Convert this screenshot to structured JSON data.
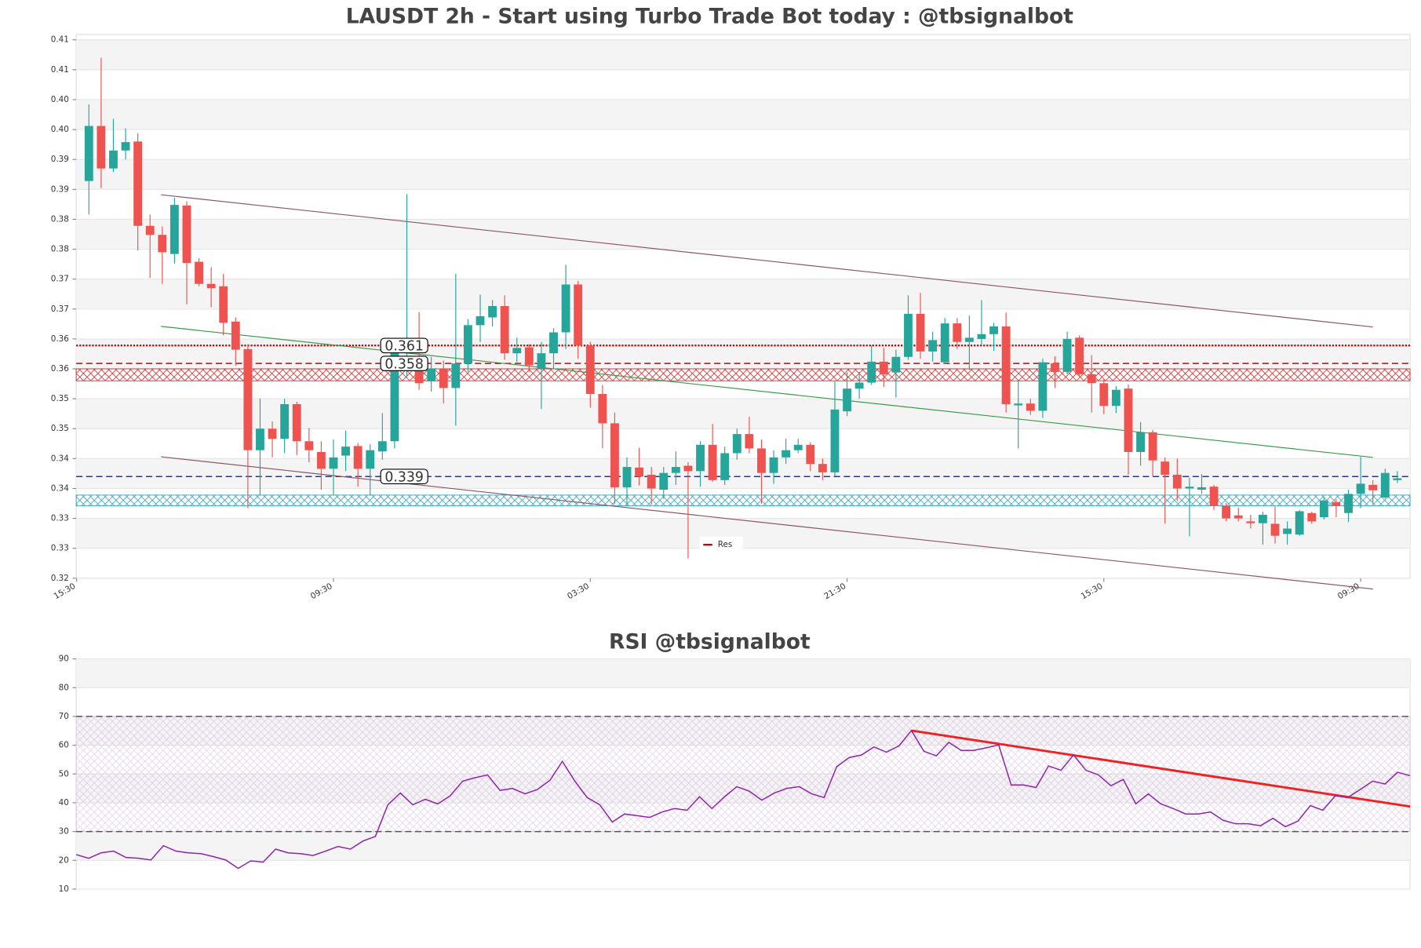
{
  "chart_data": [
    {
      "type": "candlestick",
      "title": "LAUSDT 2h - Start using Turbo Trade Bot today : @tbsignalbot",
      "up_color": "#26a69a",
      "down_color": "#ef5350",
      "open": [
        0.3884,
        0.3976,
        0.3905,
        0.3935,
        0.395,
        0.3809,
        0.3794,
        0.3762,
        0.3843,
        0.3749,
        0.3712,
        0.3708,
        0.3649,
        0.3603,
        0.3434,
        0.347,
        0.3453,
        0.3511,
        0.3449,
        0.3431,
        0.3403,
        0.3425,
        0.3441,
        0.3403,
        0.3432,
        0.3449,
        0.3567,
        0.3587,
        0.3549,
        0.357,
        0.3538,
        0.3579,
        0.3643,
        0.3656,
        0.3675,
        0.3596,
        0.3606,
        0.357,
        0.3596,
        0.3631,
        0.3711,
        0.3609,
        0.3528,
        0.3479,
        0.3372,
        0.3405,
        0.3393,
        0.3368,
        0.3396,
        0.3408,
        0.3399,
        0.3443,
        0.3384,
        0.3429,
        0.3461,
        0.3437,
        0.3396,
        0.3422,
        0.3434,
        0.3443,
        0.3411,
        0.3397,
        0.3499,
        0.3537,
        0.3547,
        0.3582,
        0.3564,
        0.359,
        0.3662,
        0.3599,
        0.3581,
        0.3646,
        0.3615,
        0.362,
        0.3628,
        0.3641,
        0.3509,
        0.3512,
        0.35,
        0.3579,
        0.3565,
        0.3622,
        0.3561,
        0.3546,
        0.3508,
        0.3537,
        0.3431,
        0.3464,
        0.3415,
        0.3393,
        0.337,
        0.3368,
        0.3373,
        0.3341,
        0.3325,
        0.3315,
        0.3312,
        0.3311,
        0.3294,
        0.3293,
        0.3329,
        0.3322,
        0.3347,
        0.3329,
        0.3361,
        0.3376,
        0.3355,
        0.3384
      ],
      "high": [
        0.4012,
        0.409,
        0.3988,
        0.3972,
        0.3964,
        0.3828,
        0.3808,
        0.3856,
        0.385,
        0.3755,
        0.374,
        0.3729,
        0.3656,
        0.3611,
        0.352,
        0.3482,
        0.352,
        0.3515,
        0.3471,
        0.3449,
        0.3452,
        0.3467,
        0.3446,
        0.3444,
        0.3496,
        0.3614,
        0.3862,
        0.3665,
        0.359,
        0.3584,
        0.3729,
        0.3653,
        0.3694,
        0.3685,
        0.3693,
        0.3622,
        0.3611,
        0.3615,
        0.3638,
        0.3744,
        0.3717,
        0.3615,
        0.3543,
        0.3497,
        0.3422,
        0.3438,
        0.3406,
        0.3406,
        0.3432,
        0.3414,
        0.3449,
        0.3478,
        0.344,
        0.347,
        0.349,
        0.3452,
        0.3434,
        0.3453,
        0.3453,
        0.3447,
        0.342,
        0.3549,
        0.3564,
        0.3565,
        0.3609,
        0.3605,
        0.3602,
        0.3693,
        0.3697,
        0.3632,
        0.3655,
        0.3655,
        0.3659,
        0.3685,
        0.3647,
        0.3664,
        0.355,
        0.352,
        0.3587,
        0.3591,
        0.3632,
        0.3626,
        0.3593,
        0.3553,
        0.3541,
        0.3544,
        0.3481,
        0.3468,
        0.3422,
        0.342,
        0.3388,
        0.3394,
        0.3376,
        0.3346,
        0.3338,
        0.3326,
        0.3331,
        0.334,
        0.3315,
        0.3334,
        0.3331,
        0.3356,
        0.3352,
        0.3368,
        0.3423,
        0.3384,
        0.3403,
        0.3399
      ],
      "low": [
        0.3828,
        0.3872,
        0.3899,
        0.392,
        0.3768,
        0.3722,
        0.3712,
        0.3746,
        0.3678,
        0.3708,
        0.3673,
        0.3626,
        0.3575,
        0.3337,
        0.3358,
        0.3422,
        0.3429,
        0.3426,
        0.3414,
        0.3368,
        0.3358,
        0.3399,
        0.3373,
        0.3358,
        0.3418,
        0.3437,
        0.3556,
        0.3535,
        0.3532,
        0.3512,
        0.3475,
        0.3565,
        0.3615,
        0.3641,
        0.3585,
        0.3581,
        0.3565,
        0.3503,
        0.357,
        0.3603,
        0.3587,
        0.3505,
        0.3437,
        0.3344,
        0.3341,
        0.3375,
        0.3343,
        0.3353,
        0.3376,
        0.3253,
        0.3373,
        0.3381,
        0.3376,
        0.3418,
        0.3429,
        0.3344,
        0.3378,
        0.3411,
        0.3429,
        0.3399,
        0.3384,
        0.339,
        0.3491,
        0.352,
        0.3543,
        0.354,
        0.3522,
        0.3585,
        0.3587,
        0.3582,
        0.3578,
        0.3603,
        0.3568,
        0.3611,
        0.36,
        0.3497,
        0.3437,
        0.3493,
        0.3488,
        0.3538,
        0.3561,
        0.3556,
        0.3497,
        0.3494,
        0.3496,
        0.3393,
        0.3408,
        0.339,
        0.3311,
        0.3349,
        0.329,
        0.3361,
        0.3334,
        0.3315,
        0.3315,
        0.3303,
        0.3276,
        0.3278,
        0.3276,
        0.3291,
        0.3311,
        0.3318,
        0.3322,
        0.3314,
        0.3337,
        0.3344,
        0.3353,
        0.3379
      ],
      "close": [
        0.3976,
        0.3905,
        0.3935,
        0.3949,
        0.3809,
        0.3794,
        0.3765,
        0.3844,
        0.3747,
        0.3712,
        0.3705,
        0.3647,
        0.3602,
        0.3434,
        0.347,
        0.3453,
        0.3511,
        0.3449,
        0.3434,
        0.3403,
        0.3422,
        0.344,
        0.3403,
        0.3434,
        0.3449,
        0.3603,
        0.3587,
        0.3546,
        0.357,
        0.3538,
        0.3579,
        0.3643,
        0.3658,
        0.3675,
        0.3596,
        0.3605,
        0.3576,
        0.3596,
        0.3631,
        0.3711,
        0.3609,
        0.3528,
        0.3479,
        0.3372,
        0.3406,
        0.339,
        0.337,
        0.3396,
        0.3406,
        0.3399,
        0.3443,
        0.3384,
        0.3429,
        0.3461,
        0.3437,
        0.3396,
        0.3422,
        0.3434,
        0.3443,
        0.3411,
        0.3397,
        0.3502,
        0.3537,
        0.3547,
        0.3582,
        0.3561,
        0.359,
        0.3662,
        0.3599,
        0.3618,
        0.3646,
        0.3615,
        0.3622,
        0.3628,
        0.3641,
        0.3511,
        0.3512,
        0.35,
        0.3581,
        0.3565,
        0.362,
        0.3561,
        0.3546,
        0.3508,
        0.3535,
        0.3431,
        0.3464,
        0.3417,
        0.3393,
        0.337,
        0.3373,
        0.3372,
        0.3341,
        0.332,
        0.332,
        0.3312,
        0.3326,
        0.3291,
        0.3303,
        0.3332,
        0.3315,
        0.335,
        0.3341,
        0.3361,
        0.3378,
        0.3367,
        0.3396,
        0.3387
      ],
      "xlim": [
        -1.04,
        108.04
      ],
      "xticks": [
        {
          "value": -1,
          "label": "15:30"
        },
        {
          "value": 20,
          "label": "09:30"
        },
        {
          "value": 41,
          "label": "03:30"
        },
        {
          "value": 62,
          "label": "21:30"
        },
        {
          "value": 83,
          "label": "15:30"
        },
        {
          "value": 104,
          "label": "09:30"
        }
      ],
      "ylim": [
        0.322,
        0.4129
      ],
      "yticks": [
        {
          "value": 0.322,
          "label": "0.32"
        },
        {
          "value": 0.327,
          "label": "0.33"
        },
        {
          "value": 0.332,
          "label": "0.33"
        },
        {
          "value": 0.337,
          "label": "0.34"
        },
        {
          "value": 0.342,
          "label": "0.34"
        },
        {
          "value": 0.347,
          "label": "0.35"
        },
        {
          "value": 0.352,
          "label": "0.35"
        },
        {
          "value": 0.357,
          "label": "0.36"
        },
        {
          "value": 0.362,
          "label": "0.36"
        },
        {
          "value": 0.367,
          "label": "0.37"
        },
        {
          "value": 0.372,
          "label": "0.37"
        },
        {
          "value": 0.377,
          "label": "0.38"
        },
        {
          "value": 0.382,
          "label": "0.38"
        },
        {
          "value": 0.387,
          "label": "0.39"
        },
        {
          "value": 0.392,
          "label": "0.39"
        },
        {
          "value": 0.397,
          "label": "0.40"
        },
        {
          "value": 0.402,
          "label": "0.40"
        },
        {
          "value": 0.407,
          "label": "0.41"
        },
        {
          "value": 0.412,
          "label": "0.41"
        }
      ],
      "grid": true,
      "zones": [
        {
          "from": 0.355,
          "to": 0.357,
          "color": "#cc2222"
        },
        {
          "from": 0.3341,
          "to": 0.3359,
          "color": "#2a9dbd"
        }
      ],
      "hlines": [
        {
          "value": 0.3609,
          "label": "0.361",
          "color": "#cc0000",
          "style": "dotted"
        },
        {
          "value": 0.3579,
          "label": "0.358",
          "color": "#cc0000",
          "style": "dashed"
        },
        {
          "value": 0.339,
          "label": "0.339",
          "color": "#2233aa",
          "style": "dashed"
        }
      ],
      "trendlines": [
        {
          "x": [
            5.9,
            105
          ],
          "y": [
            0.3861,
            0.364
          ],
          "color": "#8a5566"
        },
        {
          "x": [
            5.9,
            105
          ],
          "y": [
            0.3641,
            0.3422
          ],
          "color": "#3a9a4a"
        },
        {
          "x": [
            5.9,
            105
          ],
          "y": [
            0.3423,
            0.3202
          ],
          "color": "#8a5566"
        }
      ],
      "legend": {
        "position": "lower center",
        "entries": [
          {
            "name": "Res",
            "color": "#cc0000"
          }
        ]
      }
    },
    {
      "type": "line",
      "title": "RSI @tbsignalbot",
      "color": "#8e24aa",
      "values": [
        22.0,
        20.7,
        22.6,
        23.2,
        21.0,
        20.7,
        20.1,
        25.1,
        23.2,
        22.6,
        22.3,
        21.3,
        20.1,
        17.2,
        19.8,
        19.4,
        23.9,
        22.6,
        22.3,
        21.7,
        23.2,
        24.8,
        23.9,
        26.7,
        28.3,
        39.3,
        43.4,
        39.3,
        41.2,
        39.6,
        42.4,
        47.5,
        48.7,
        49.7,
        44.3,
        45.0,
        43.1,
        44.6,
        47.8,
        54.4,
        47.5,
        41.8,
        39.3,
        33.3,
        36.1,
        35.5,
        34.9,
        36.8,
        38.0,
        37.4,
        42.1,
        38.0,
        42.1,
        45.6,
        44.0,
        40.9,
        43.4,
        45.0,
        45.6,
        43.1,
        41.8,
        52.5,
        55.7,
        56.6,
        59.4,
        57.6,
        59.8,
        65.1,
        57.9,
        56.3,
        61.0,
        58.2,
        58.2,
        59.1,
        60.1,
        46.2,
        46.2,
        45.3,
        52.8,
        51.3,
        56.6,
        51.3,
        49.7,
        45.9,
        48.1,
        39.6,
        43.1,
        39.6,
        38.0,
        36.1,
        36.1,
        36.8,
        33.9,
        32.7,
        32.7,
        32.0,
        34.6,
        31.7,
        33.6,
        39.0,
        37.4,
        42.4,
        41.8,
        44.6,
        47.5,
        46.5,
        50.6,
        49.4
      ],
      "xlim": [
        0,
        107
      ],
      "ylim": [
        10,
        90
      ],
      "yticks": [
        10,
        20,
        30,
        40,
        50,
        60,
        70,
        80,
        90
      ],
      "grid": true,
      "zones": [
        {
          "from": 30,
          "to": 70,
          "color": "#c9a0d6"
        }
      ],
      "hlines": [
        {
          "value": 70,
          "color": "#555555",
          "style": "dashed"
        },
        {
          "value": 30,
          "color": "#555555",
          "style": "dashed"
        }
      ],
      "trendlines": [
        {
          "x": [
            67,
            107
          ],
          "y": [
            65.1,
            38.7
          ],
          "color": "#ee2222"
        }
      ]
    }
  ]
}
